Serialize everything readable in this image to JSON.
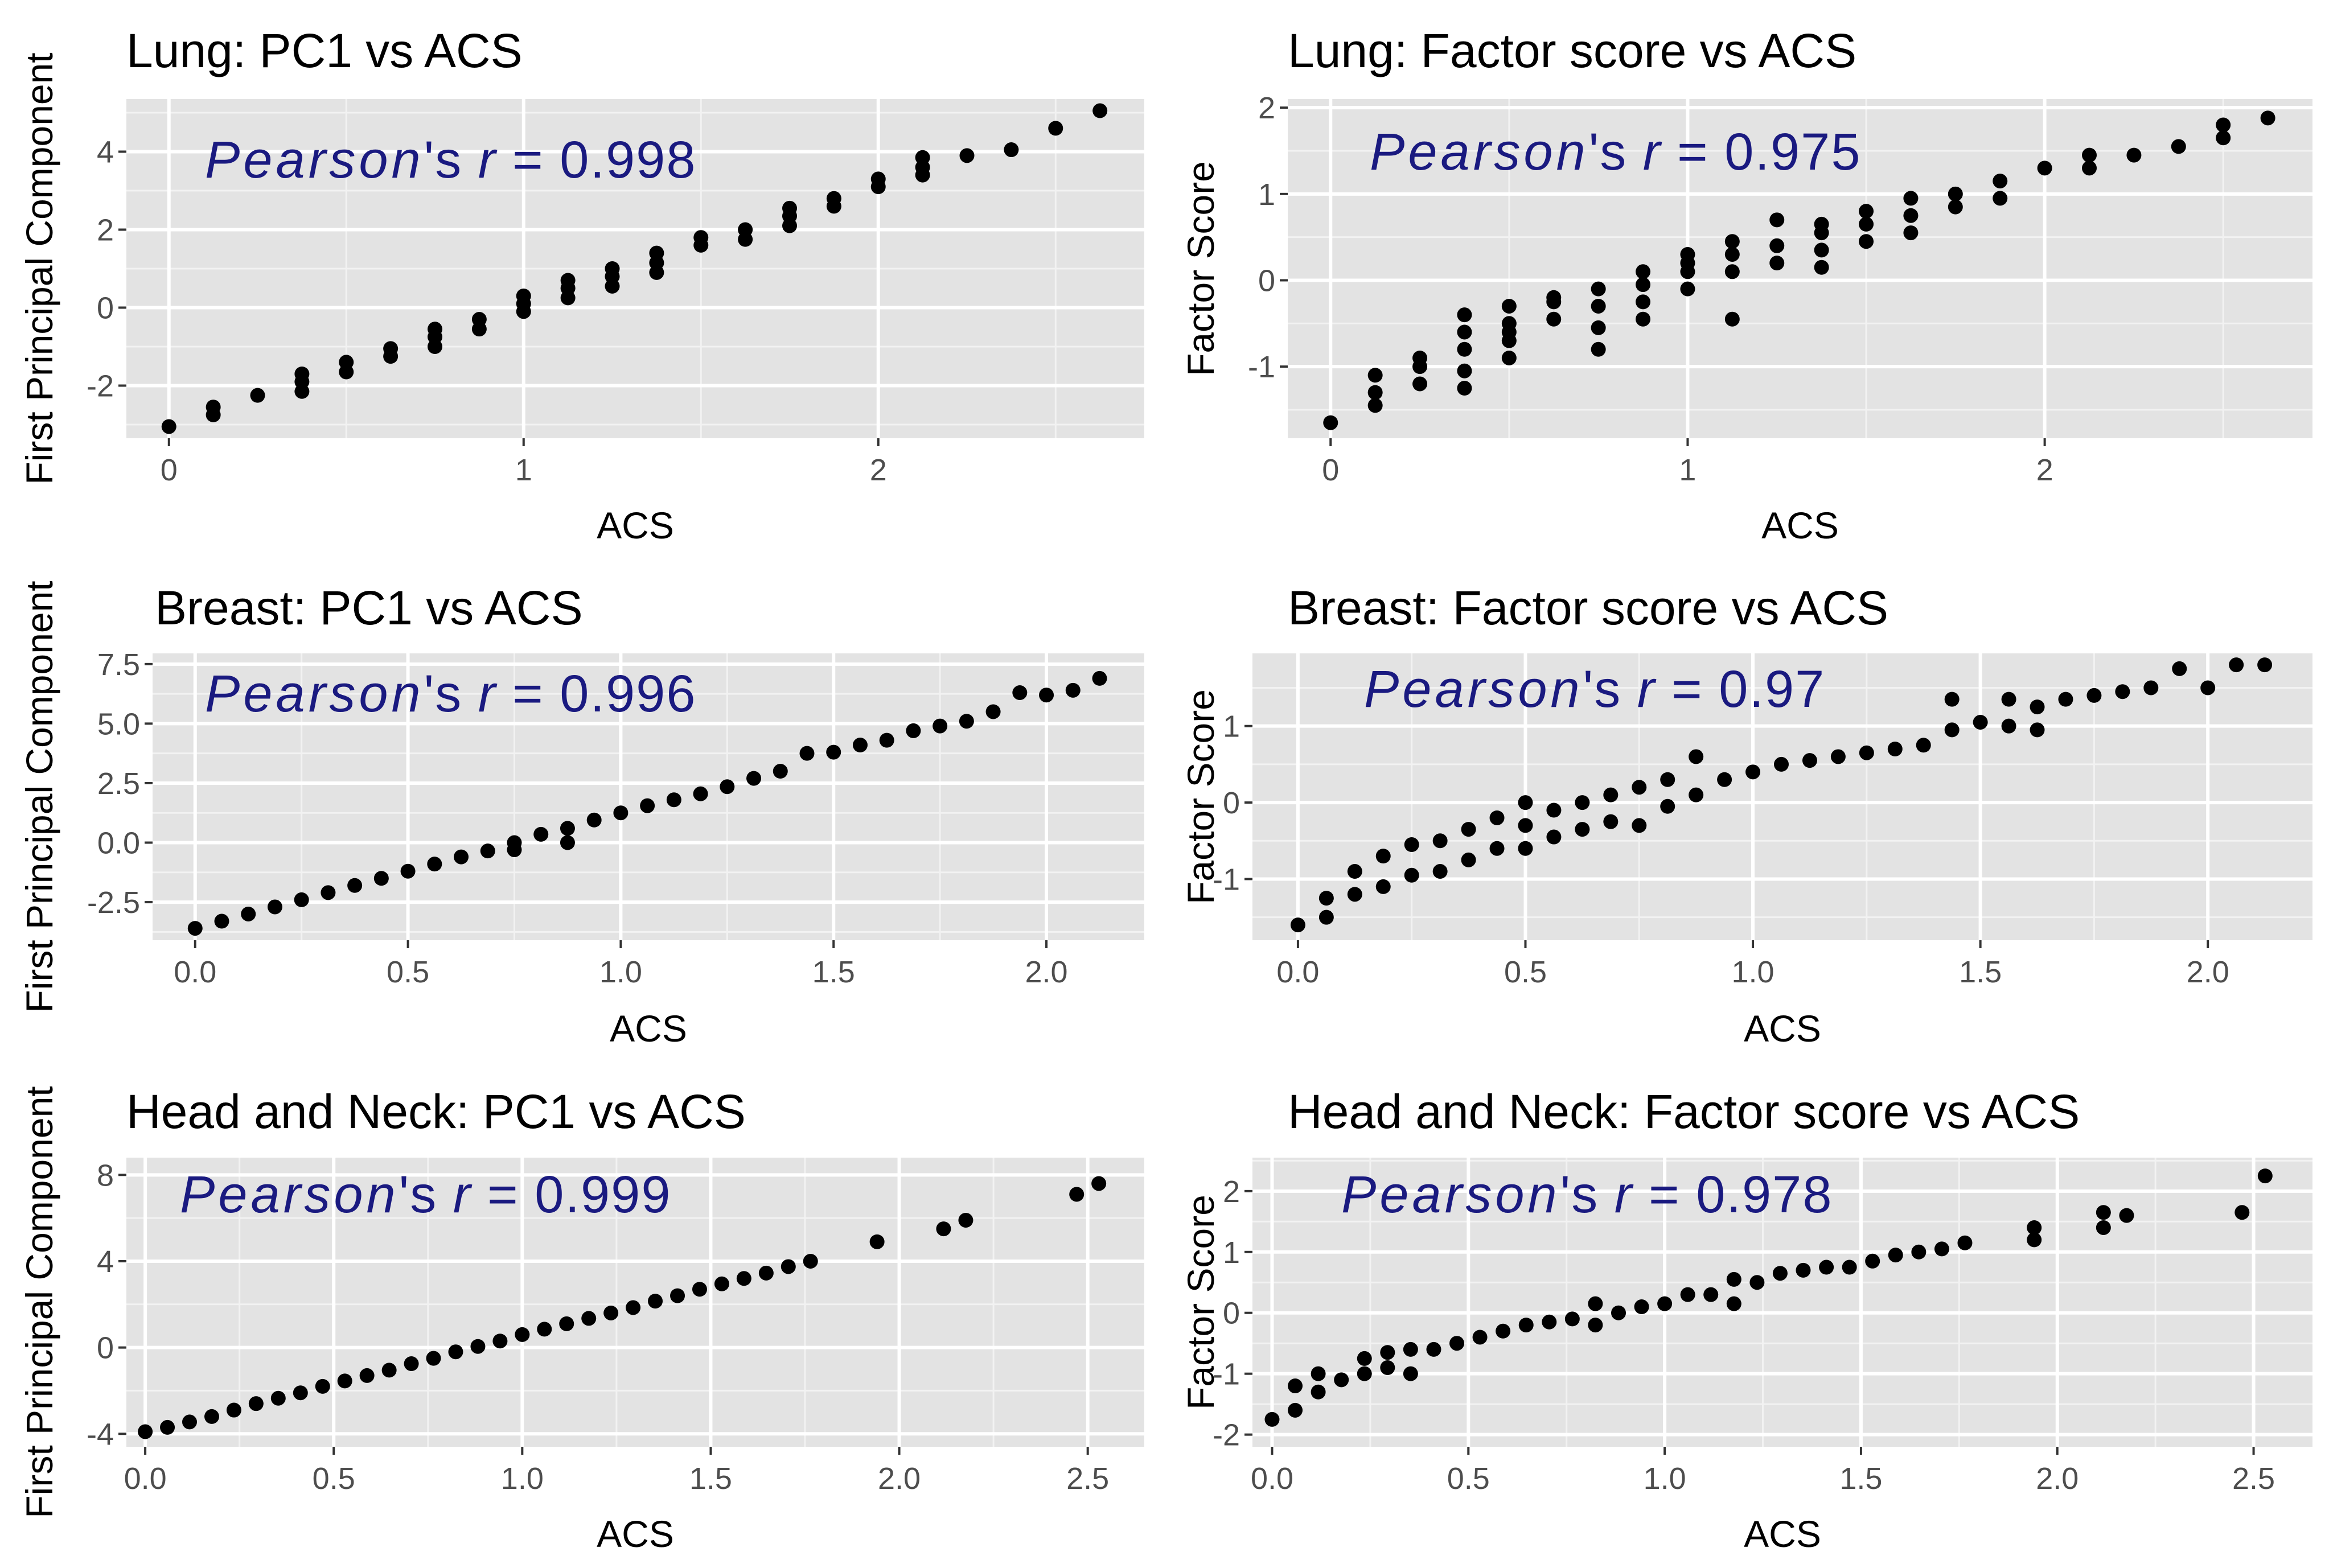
{
  "chart_data": [
    {
      "type": "scatter",
      "title": "Lung: PC1 vs ACS",
      "xlabel": "ACS",
      "ylabel": "First Principal Component",
      "xlim": [
        -0.12,
        2.75
      ],
      "ylim": [
        -3.35,
        5.35
      ],
      "xticks": [
        0,
        1,
        2
      ],
      "xtick_labels": [
        "0",
        "1",
        "2"
      ],
      "yticks": [
        -2,
        0,
        2,
        4
      ],
      "ytick_labels": [
        "-2",
        "0",
        "2",
        "4"
      ],
      "grid": true,
      "annotation": {
        "prefix": "Pearson",
        "suffix": "'s ",
        "r": "r",
        "equals": " = 0.998"
      },
      "x": [
        0,
        0.125,
        0.125,
        0.25,
        0.375,
        0.375,
        0.375,
        0.5,
        0.5,
        0.625,
        0.625,
        0.75,
        0.75,
        0.75,
        0.875,
        0.875,
        1.0,
        1.0,
        1.0,
        1.125,
        1.125,
        1.125,
        1.25,
        1.25,
        1.25,
        1.375,
        1.375,
        1.375,
        1.5,
        1.5,
        1.625,
        1.625,
        1.75,
        1.75,
        1.75,
        1.875,
        1.875,
        2.0,
        2.0,
        2.125,
        2.125,
        2.125,
        2.25,
        2.375,
        2.5,
        2.625
      ],
      "y": [
        -3.05,
        -2.75,
        -2.55,
        -2.25,
        -2.15,
        -1.9,
        -1.7,
        -1.65,
        -1.4,
        -1.25,
        -1.05,
        -1.0,
        -0.75,
        -0.55,
        -0.55,
        -0.3,
        -0.1,
        0.1,
        0.3,
        0.25,
        0.5,
        0.7,
        0.55,
        0.8,
        1.0,
        0.9,
        1.15,
        1.4,
        1.6,
        1.8,
        1.75,
        2.0,
        2.1,
        2.35,
        2.55,
        2.6,
        2.8,
        3.1,
        3.3,
        3.4,
        3.6,
        3.85,
        3.9,
        4.05,
        4.6,
        5.05
      ]
    },
    {
      "type": "scatter",
      "title": "Lung: Factor score vs ACS",
      "xlabel": "ACS",
      "ylabel": "Factor Score",
      "xlim": [
        -0.12,
        2.75
      ],
      "ylim": [
        -1.83,
        2.1
      ],
      "xticks": [
        0,
        1,
        2
      ],
      "xtick_labels": [
        "0",
        "1",
        "2"
      ],
      "yticks": [
        -1,
        0,
        1,
        2
      ],
      "ytick_labels": [
        "-1",
        "0",
        "1",
        "2"
      ],
      "grid": true,
      "annotation": {
        "prefix": "Pearson",
        "suffix": "'s ",
        "r": "r",
        "equals": " = 0.975"
      },
      "x": [
        0,
        0.125,
        0.125,
        0.125,
        0.25,
        0.25,
        0.25,
        0.375,
        0.375,
        0.375,
        0.375,
        0.375,
        0.5,
        0.5,
        0.5,
        0.5,
        0.5,
        0.625,
        0.625,
        0.625,
        0.75,
        0.75,
        0.75,
        0.75,
        0.875,
        0.875,
        0.875,
        0.875,
        1.0,
        1.0,
        1.0,
        1.0,
        1.125,
        1.125,
        1.125,
        1.125,
        1.25,
        1.25,
        1.25,
        1.375,
        1.375,
        1.375,
        1.375,
        1.5,
        1.5,
        1.5,
        1.625,
        1.625,
        1.625,
        1.75,
        1.75,
        1.875,
        1.875,
        2.0,
        2.125,
        2.125,
        2.25,
        2.375,
        2.5,
        2.5,
        2.625
      ],
      "y": [
        -1.65,
        -1.45,
        -1.3,
        -1.1,
        -1.2,
        -1.0,
        -0.9,
        -1.25,
        -1.05,
        -0.8,
        -0.6,
        -0.4,
        -0.9,
        -0.7,
        -0.5,
        -0.3,
        -0.6,
        -0.45,
        -0.25,
        -0.2,
        -0.8,
        -0.55,
        -0.3,
        -0.1,
        -0.45,
        -0.25,
        -0.05,
        0.1,
        -0.1,
        0.1,
        0.2,
        0.3,
        -0.45,
        0.1,
        0.3,
        0.45,
        0.2,
        0.4,
        0.7,
        0.15,
        0.35,
        0.55,
        0.65,
        0.45,
        0.65,
        0.8,
        0.55,
        0.75,
        0.95,
        0.85,
        1.0,
        0.95,
        1.15,
        1.3,
        1.3,
        1.45,
        1.45,
        1.55,
        1.65,
        1.8,
        1.88
      ]
    },
    {
      "type": "scatter",
      "title": "Breast: PC1 vs ACS",
      "xlabel": "ACS",
      "ylabel": "First Principal Component",
      "xlim": [
        -0.1,
        2.23
      ],
      "ylim": [
        -4.1,
        7.95
      ],
      "xticks": [
        0,
        0.5,
        1.0,
        1.5,
        2.0
      ],
      "xtick_labels": [
        "0.0",
        "0.5",
        "1.0",
        "1.5",
        "2.0"
      ],
      "yticks": [
        -2.5,
        0,
        2.5,
        5,
        7.5
      ],
      "ytick_labels": [
        "-2.5",
        "0.0",
        "2.5",
        "5.0",
        "7.5"
      ],
      "grid": true,
      "annotation": {
        "prefix": "Pearson",
        "suffix": "'s ",
        "r": "r",
        "equals": " = 0.996"
      },
      "x": [
        0,
        0.0625,
        0.125,
        0.1875,
        0.25,
        0.3125,
        0.375,
        0.4375,
        0.5,
        0.5625,
        0.625,
        0.6875,
        0.75,
        0.75,
        0.8125,
        0.875,
        0.875,
        0.9375,
        1.0,
        1.0625,
        1.125,
        1.1875,
        1.25,
        1.3125,
        1.375,
        1.4375,
        1.5,
        1.5625,
        1.625,
        1.6875,
        1.75,
        1.8125,
        1.875,
        1.9375,
        2.0,
        2.0625,
        2.125
      ],
      "y": [
        -3.6,
        -3.3,
        -3.0,
        -2.7,
        -2.4,
        -2.1,
        -1.8,
        -1.5,
        -1.2,
        -0.9,
        -0.6,
        -0.35,
        0.0,
        -0.3,
        0.35,
        0.6,
        0.0,
        0.95,
        1.25,
        1.55,
        1.8,
        2.05,
        2.35,
        2.7,
        3.0,
        3.75,
        3.8,
        4.1,
        4.3,
        4.7,
        4.9,
        5.1,
        5.5,
        6.3,
        6.2,
        6.4,
        6.9
      ]
    },
    {
      "type": "scatter",
      "title": "Breast: Factor score vs ACS",
      "xlabel": "ACS",
      "ylabel": "Factor Score",
      "xlim": [
        -0.1,
        2.23
      ],
      "ylim": [
        -1.8,
        1.95
      ],
      "xticks": [
        0,
        0.5,
        1.0,
        1.5,
        2.0
      ],
      "xtick_labels": [
        "0.0",
        "0.5",
        "1.0",
        "1.5",
        "2.0"
      ],
      "yticks": [
        -1,
        0,
        1
      ],
      "ytick_labels": [
        "-1",
        "0",
        "1"
      ],
      "grid": true,
      "annotation": {
        "prefix": "Pearson",
        "suffix": "'s ",
        "r": "r",
        "equals": " = 0.97"
      },
      "x": [
        0,
        0.0625,
        0.0625,
        0.125,
        0.125,
        0.1875,
        0.1875,
        0.25,
        0.25,
        0.3125,
        0.3125,
        0.375,
        0.375,
        0.4375,
        0.4375,
        0.5,
        0.5,
        0.5,
        0.5625,
        0.5625,
        0.625,
        0.625,
        0.6875,
        0.6875,
        0.75,
        0.75,
        0.8125,
        0.8125,
        0.875,
        0.875,
        0.9375,
        1.0,
        1.0625,
        1.125,
        1.1875,
        1.25,
        1.3125,
        1.375,
        1.4375,
        1.4375,
        1.5,
        1.5625,
        1.5625,
        1.625,
        1.625,
        1.6875,
        1.75,
        1.8125,
        1.875,
        1.9375,
        2.0,
        2.0625,
        2.125
      ],
      "y": [
        -1.6,
        -1.5,
        -1.25,
        -1.2,
        -0.9,
        -1.1,
        -0.7,
        -0.95,
        -0.55,
        -0.9,
        -0.5,
        -0.75,
        -0.35,
        -0.6,
        -0.2,
        -0.6,
        -0.3,
        0.0,
        -0.45,
        -0.1,
        -0.35,
        0.0,
        -0.25,
        0.1,
        -0.3,
        0.2,
        -0.05,
        0.3,
        0.1,
        0.6,
        0.3,
        0.4,
        0.5,
        0.55,
        0.6,
        0.65,
        0.7,
        0.75,
        0.95,
        1.35,
        1.05,
        1.0,
        1.35,
        0.95,
        1.25,
        1.35,
        1.4,
        1.45,
        1.5,
        1.75,
        1.5,
        1.8,
        1.8
      ]
    },
    {
      "type": "scatter",
      "title": "Head and Neck: PC1 vs ACS",
      "xlabel": "ACS",
      "ylabel": "First Principal Component",
      "xlim": [
        -0.05,
        2.65
      ],
      "ylim": [
        -4.6,
        8.8
      ],
      "xticks": [
        0,
        0.5,
        1.0,
        1.5,
        2.0,
        2.5
      ],
      "xtick_labels": [
        "0.0",
        "0.5",
        "1.0",
        "1.5",
        "2.0",
        "2.5"
      ],
      "yticks": [
        -4,
        0,
        4,
        8
      ],
      "ytick_labels": [
        "-4",
        "0",
        "4",
        "8"
      ],
      "grid": true,
      "annotation": {
        "prefix": "Pearson",
        "suffix": "'s ",
        "r": "r",
        "equals": " = 0.999"
      },
      "x": [
        0,
        0.0588,
        0.1176,
        0.1765,
        0.2353,
        0.2941,
        0.3529,
        0.4118,
        0.4706,
        0.5294,
        0.5882,
        0.6471,
        0.7059,
        0.7647,
        0.8235,
        0.8824,
        0.9412,
        1.0,
        1.0588,
        1.1176,
        1.1765,
        1.2353,
        1.2941,
        1.3529,
        1.4118,
        1.4706,
        1.5294,
        1.5882,
        1.6471,
        1.7059,
        1.7647,
        1.9412,
        2.1176,
        2.1765,
        2.4706,
        2.5294
      ],
      "y": [
        -3.9,
        -3.7,
        -3.45,
        -3.2,
        -2.9,
        -2.6,
        -2.35,
        -2.1,
        -1.8,
        -1.55,
        -1.3,
        -1.05,
        -0.75,
        -0.5,
        -0.2,
        0.05,
        0.3,
        0.6,
        0.85,
        1.1,
        1.35,
        1.6,
        1.85,
        2.15,
        2.4,
        2.7,
        2.95,
        3.2,
        3.45,
        3.75,
        4.0,
        4.9,
        5.5,
        5.9,
        7.1,
        7.6
      ]
    },
    {
      "type": "scatter",
      "title": "Head and Neck: Factor score vs ACS",
      "xlabel": "ACS",
      "ylabel": "Factor Score",
      "xlim": [
        -0.05,
        2.65
      ],
      "ylim": [
        -2.2,
        2.55
      ],
      "xticks": [
        0,
        0.5,
        1.0,
        1.5,
        2.0,
        2.5
      ],
      "xtick_labels": [
        "0.0",
        "0.5",
        "1.0",
        "1.5",
        "2.0",
        "2.5"
      ],
      "yticks": [
        -2,
        -1,
        0,
        1,
        2
      ],
      "ytick_labels": [
        "-2",
        "-1",
        "0",
        "1",
        "2"
      ],
      "grid": true,
      "annotation": {
        "prefix": "Pearson",
        "suffix": "'s ",
        "r": "r",
        "equals": " = 0.978"
      },
      "x": [
        0,
        0.0588,
        0.0588,
        0.1176,
        0.1176,
        0.1765,
        0.2353,
        0.2353,
        0.2941,
        0.2941,
        0.3529,
        0.3529,
        0.4118,
        0.4706,
        0.5294,
        0.5882,
        0.6471,
        0.7059,
        0.7647,
        0.8235,
        0.8235,
        0.8824,
        0.9412,
        1.0,
        1.0588,
        1.1176,
        1.1765,
        1.1765,
        1.2353,
        1.2941,
        1.3529,
        1.4118,
        1.4706,
        1.5294,
        1.5882,
        1.6471,
        1.7059,
        1.7647,
        1.9412,
        1.9412,
        2.1176,
        2.1176,
        2.1765,
        2.4706,
        2.5294
      ],
      "y": [
        -1.75,
        -1.6,
        -1.2,
        -1.3,
        -1.0,
        -1.1,
        -1.0,
        -0.75,
        -0.9,
        -0.65,
        -1.0,
        -0.6,
        -0.6,
        -0.5,
        -0.4,
        -0.3,
        -0.2,
        -0.15,
        -0.1,
        -0.2,
        0.15,
        0.0,
        0.1,
        0.15,
        0.3,
        0.3,
        0.15,
        0.55,
        0.5,
        0.65,
        0.7,
        0.75,
        0.75,
        0.85,
        0.95,
        1.0,
        1.05,
        1.15,
        1.2,
        1.4,
        1.4,
        1.65,
        1.6,
        1.65,
        2.25
      ]
    }
  ]
}
